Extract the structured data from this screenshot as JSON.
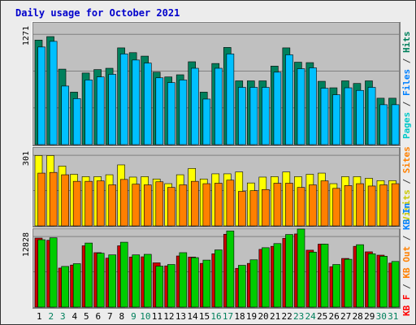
{
  "title": "Daily usage for October 2021",
  "chart_data": {
    "type": "bar",
    "categories": [
      "1",
      "2",
      "3",
      "4",
      "5",
      "6",
      "7",
      "8",
      "9",
      "10",
      "11",
      "12",
      "13",
      "14",
      "15",
      "16",
      "17",
      "18",
      "19",
      "20",
      "21",
      "22",
      "23",
      "24",
      "25",
      "26",
      "27",
      "28",
      "29",
      "30",
      "31"
    ],
    "weekend_days": [
      "2",
      "3",
      "9",
      "10",
      "16",
      "17",
      "23",
      "24",
      "30",
      "31"
    ],
    "panels": [
      {
        "ytick": "1271",
        "ymax": 1271,
        "series": [
          {
            "name": "Hits",
            "color": "#00805c",
            "values": [
              1205,
              1245,
              870,
              605,
              825,
              865,
              880,
              1115,
              1060,
              1020,
              835,
              780,
              805,
              955,
              605,
              935,
              1120,
              735,
              735,
              735,
              905,
              1115,
              950,
              945,
              730,
              655,
              735,
              705,
              735,
              535,
              535
            ]
          },
          {
            "name": "Files",
            "color": "#00c0ff",
            "values": [
              1125,
              1190,
              675,
              530,
              745,
              780,
              810,
              1045,
              975,
              940,
              770,
              715,
              745,
              880,
              525,
              880,
              1045,
              660,
              660,
              660,
              835,
              1035,
              875,
              885,
              650,
              575,
              655,
              625,
              660,
              460,
              460
            ]
          },
          {
            "name": "Pages",
            "color": "#00ffff",
            "values": []
          }
        ]
      },
      {
        "ytick": "301",
        "ymax": 301,
        "series": [
          {
            "name": "Visits",
            "color": "#ffff00",
            "values": [
              300,
              300,
              255,
              220,
              210,
              210,
              218,
              260,
              208,
              210,
              200,
              180,
              218,
              245,
              200,
              222,
              222,
              230,
              183,
              208,
              210,
              230,
              210,
              220,
              225,
              180,
              210,
              210,
              203,
              193,
              193
            ]
          },
          {
            "name": "Sites",
            "color": "#ff8000",
            "values": [
              225,
              228,
              218,
              190,
              190,
              192,
              175,
              198,
              178,
              175,
              188,
              164,
              175,
              190,
              180,
              182,
              195,
              147,
              150,
              155,
              182,
              182,
              164,
              175,
              192,
              160,
              172,
              180,
              170,
              175,
              180
            ]
          }
        ]
      },
      {
        "ytick": "12828",
        "ymax": 12828,
        "series": [
          {
            "name": "KB In",
            "color": "#00cc00",
            "values": [
              12250,
              12600,
              7400,
              7900,
              11650,
              9800,
              9500,
              11800,
              9500,
              9600,
              7450,
              7750,
              9900,
              9000,
              8550,
              10400,
              13850,
              7600,
              8600,
              10800,
              11550,
              13200,
              14200,
              10000,
              11450,
              7750,
              8700,
              11350,
              9700,
              9250,
              8300
            ]
          },
          {
            "name": "KB Out",
            "color": "#ff0000",
            "values": []
          },
          {
            "name": "KB F",
            "color": "#cc0000",
            "values": [
              12550,
              12150,
              7100,
              7650,
              11150,
              9900,
              8900,
              11150,
              9100,
              9150,
              8050,
              7500,
              9300,
              9100,
              7950,
              9700,
              13250,
              7050,
              7950,
              10500,
              11050,
              12500,
              13300,
              10350,
              11450,
              7350,
              8850,
              11050,
              10050,
              9450,
              8000
            ]
          }
        ]
      }
    ]
  },
  "legend_right": [
    {
      "text": "Pages",
      "color": "#00c8c8"
    },
    {
      "text": " / ",
      "color": "#404040"
    },
    {
      "text": "Files",
      "color": "#0080ff"
    },
    {
      "text": " / ",
      "color": "#404040"
    },
    {
      "text": "Hits",
      "color": "#00805c"
    },
    {
      "text": "Visits",
      "color": "#c8c800"
    },
    {
      "text": " / ",
      "color": "#404040"
    },
    {
      "text": "Sites",
      "color": "#ff8000"
    },
    {
      "text": "KB F",
      "color": "#ff0000"
    },
    {
      "text": " / ",
      "color": "#404040"
    },
    {
      "text": "KB Out",
      "color": "#ff8000"
    },
    {
      "text": " / ",
      "color": "#404040"
    },
    {
      "text": "KB In",
      "color": "#0080ff"
    }
  ]
}
